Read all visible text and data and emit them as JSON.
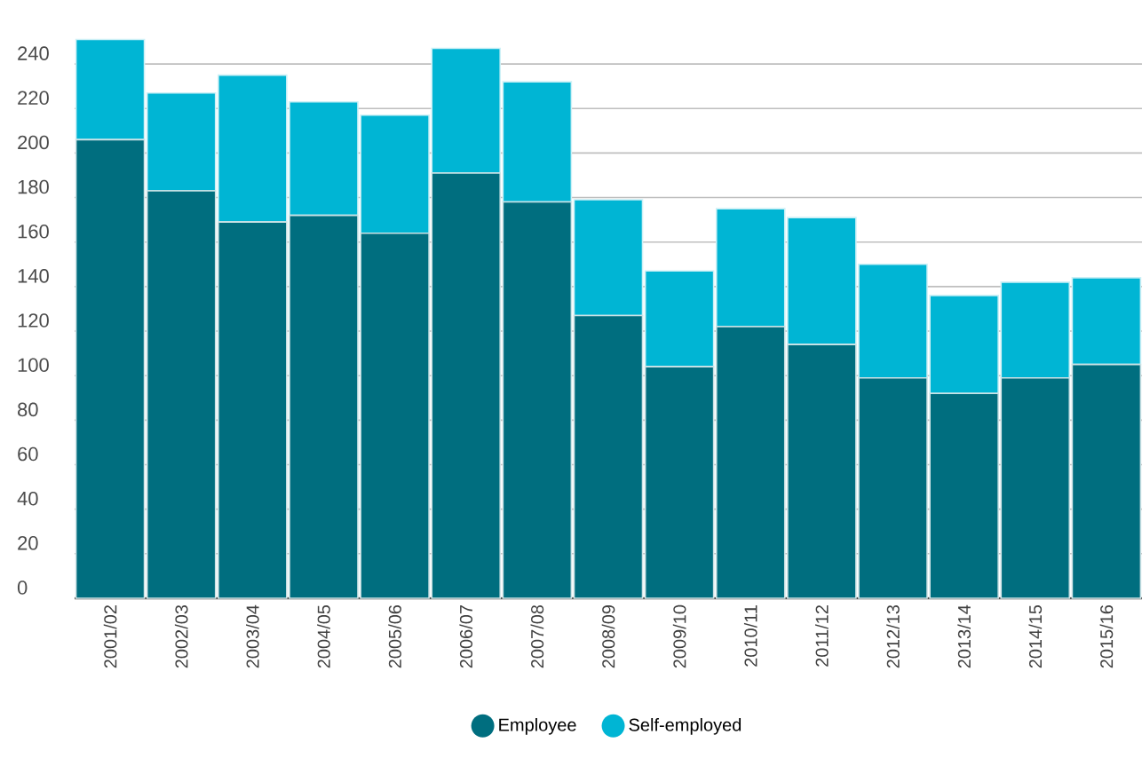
{
  "chart_data": {
    "type": "bar",
    "stacked": true,
    "categories": [
      "2001/02",
      "2002/03",
      "2003/04",
      "2004/05",
      "2005/06",
      "2006/07",
      "2007/08",
      "2008/09",
      "2009/10",
      "2010/11",
      "2011/12",
      "2012/13",
      "2013/14",
      "2014/15",
      "2015/16"
    ],
    "series": [
      {
        "name": "Employee",
        "color": "#006e7f",
        "values": [
          206,
          183,
          169,
          172,
          164,
          191,
          178,
          127,
          104,
          122,
          114,
          99,
          92,
          99,
          105
        ]
      },
      {
        "name": "Self-employed",
        "color": "#00b5d4",
        "values": [
          45,
          44,
          66,
          51,
          53,
          56,
          54,
          52,
          43,
          53,
          57,
          51,
          44,
          43,
          39
        ]
      }
    ],
    "ylim": [
      0,
      252
    ],
    "yticks": [
      0,
      20,
      40,
      60,
      80,
      100,
      120,
      140,
      160,
      180,
      200,
      220,
      240
    ],
    "grid": "y",
    "legend": "bottom"
  }
}
